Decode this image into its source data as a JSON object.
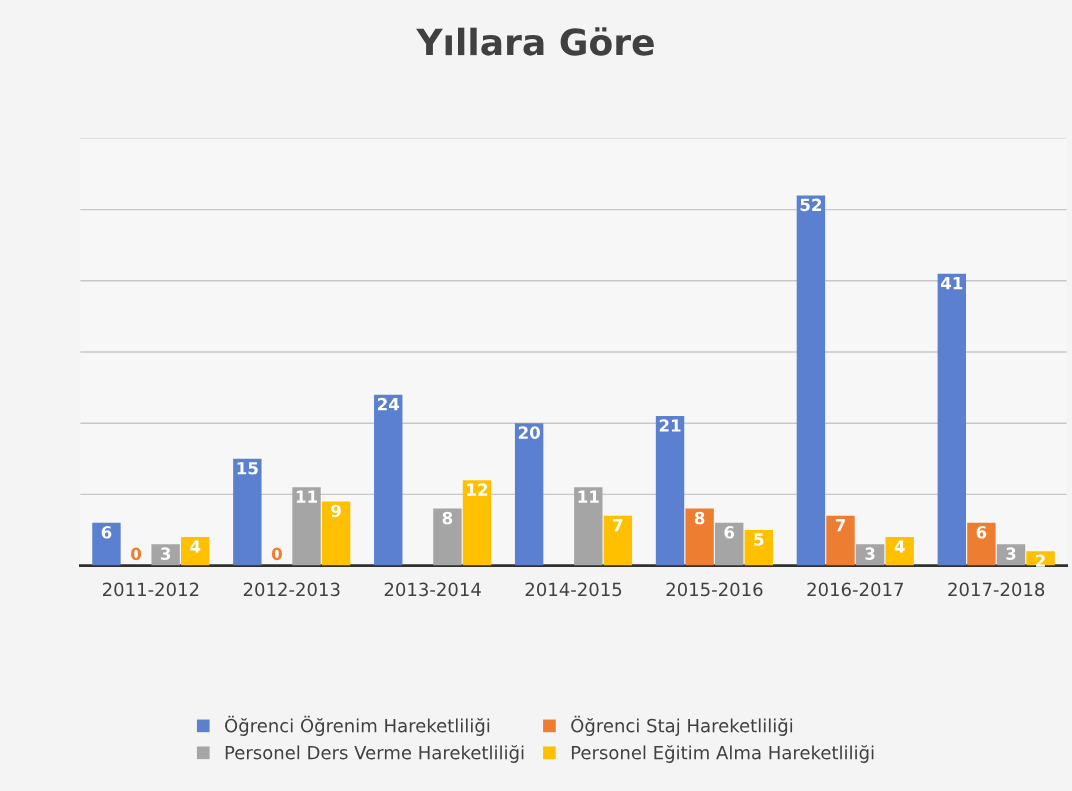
{
  "chart_data": {
    "type": "bar",
    "title": "Yıllara Göre",
    "categories": [
      "2011-2012",
      "2012-2013",
      "2013-2014",
      "2014-2015",
      "2015-2016",
      "2016-2017",
      "2017-2018"
    ],
    "series": [
      {
        "name": "Öğrenci Öğrenim Hareketliliği",
        "color": "#5a80cf",
        "values": [
          6,
          15,
          24,
          20,
          21,
          52,
          41
        ]
      },
      {
        "name": "Öğrenci Staj Hareketliliği",
        "color": "#ed7d31",
        "values": [
          0,
          0,
          null,
          null,
          8,
          7,
          6
        ]
      },
      {
        "name": "Personel Ders Verme Hareketliliği",
        "color": "#a5a5a5",
        "values": [
          3,
          11,
          8,
          11,
          6,
          3,
          3
        ]
      },
      {
        "name": "Personel Eğitim Alma Hareketliliği",
        "color": "#ffc000",
        "values": [
          4,
          9,
          12,
          7,
          5,
          4,
          2
        ]
      }
    ],
    "ylim": [
      0,
      60
    ],
    "yticks": [
      {
        "value": 0,
        "label": null
      },
      {
        "value": 10,
        "label": null
      },
      {
        "value": 20,
        "label": null
      },
      {
        "value": 30,
        "label": null
      },
      {
        "value": 40,
        "label": null
      },
      {
        "value": 50,
        "label": null
      },
      {
        "value": 60,
        "label": null
      }
    ],
    "tick_labels": "x",
    "grid": "y",
    "data_labels": true,
    "legend": "bottom"
  }
}
